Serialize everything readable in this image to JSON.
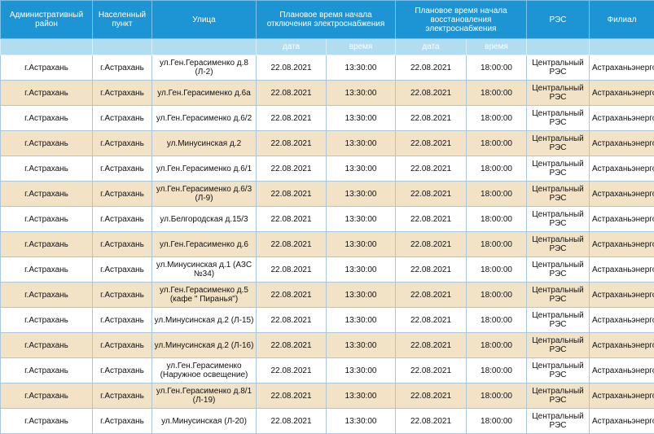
{
  "table": {
    "headers": {
      "district": "Административный район",
      "locality": "Населенный пункт",
      "street": "Улица",
      "off_start": "Плановое время начала отключения электроснабжения",
      "restore_start": "Плановое время начала восстановления электроснабжения",
      "res": "РЭС",
      "branch": "Филиал"
    },
    "subheaders": {
      "off_date": "дата",
      "off_time": "время",
      "restore_date": "дата",
      "restore_time": "время"
    },
    "rows": [
      {
        "district": "г.Астрахань",
        "locality": "г.Астрахань",
        "street": "ул.Ген.Герасименко д.8 (Л-2)",
        "off_date": "22.08.2021",
        "off_time": "13:30:00",
        "restore_date": "22.08.2021",
        "restore_time": "18:00:00",
        "res": "Центральный РЭС",
        "branch": "Астраханьэнерго"
      },
      {
        "district": "г.Астрахань",
        "locality": "г.Астрахань",
        "street": "ул.Ген.Герасименко д.6а",
        "off_date": "22.08.2021",
        "off_time": "13:30:00",
        "restore_date": "22.08.2021",
        "restore_time": "18:00:00",
        "res": "Центральный РЭС",
        "branch": "Астраханьэнерго"
      },
      {
        "district": "г.Астрахань",
        "locality": "г.Астрахань",
        "street": "ул.Ген.Герасименко д.6/2",
        "off_date": "22.08.2021",
        "off_time": "13:30:00",
        "restore_date": "22.08.2021",
        "restore_time": "18:00:00",
        "res": "Центральный РЭС",
        "branch": "Астраханьэнерго"
      },
      {
        "district": "г.Астрахань",
        "locality": "г.Астрахань",
        "street": "ул.Минусинская д.2",
        "off_date": "22.08.2021",
        "off_time": "13:30:00",
        "restore_date": "22.08.2021",
        "restore_time": "18:00:00",
        "res": "Центральный РЭС",
        "branch": "Астраханьэнерго"
      },
      {
        "district": "г.Астрахань",
        "locality": "г.Астрахань",
        "street": "ул.Ген.Герасименко д.6/1",
        "off_date": "22.08.2021",
        "off_time": "13:30:00",
        "restore_date": "22.08.2021",
        "restore_time": "18:00:00",
        "res": "Центральный РЭС",
        "branch": "Астраханьэнерго"
      },
      {
        "district": "г.Астрахань",
        "locality": "г.Астрахань",
        "street": "ул.Ген.Герасименко д.6/3 (Л-9)",
        "off_date": "22.08.2021",
        "off_time": "13:30:00",
        "restore_date": "22.08.2021",
        "restore_time": "18:00:00",
        "res": "Центральный РЭС",
        "branch": "Астраханьэнерго"
      },
      {
        "district": "г.Астрахань",
        "locality": "г.Астрахань",
        "street": "ул.Белгородская д.15/3",
        "off_date": "22.08.2021",
        "off_time": "13:30:00",
        "restore_date": "22.08.2021",
        "restore_time": "18:00:00",
        "res": "Центральный РЭС",
        "branch": "Астраханьэнерго"
      },
      {
        "district": "г.Астрахань",
        "locality": "г.Астрахань",
        "street": "ул.Ген.Герасименко д.6",
        "off_date": "22.08.2021",
        "off_time": "13:30:00",
        "restore_date": "22.08.2021",
        "restore_time": "18:00:00",
        "res": "Центральный РЭС",
        "branch": "Астраханьэнерго"
      },
      {
        "district": "г.Астрахань",
        "locality": "г.Астрахань",
        "street": "ул.Минусинская д.1 (АЗС №34)",
        "off_date": "22.08.2021",
        "off_time": "13:30:00",
        "restore_date": "22.08.2021",
        "restore_time": "18:00:00",
        "res": "Центральный РЭС",
        "branch": "Астраханьэнерго"
      },
      {
        "district": "г.Астрахань",
        "locality": "г.Астрахань",
        "street": "ул.Ген.Герасименко д.5 (кафе \" Пиранья\")",
        "off_date": "22.08.2021",
        "off_time": "13:30:00",
        "restore_date": "22.08.2021",
        "restore_time": "18:00:00",
        "res": "Центральный РЭС",
        "branch": "Астраханьэнерго"
      },
      {
        "district": "г.Астрахань",
        "locality": "г.Астрахань",
        "street": "ул.Минусинская д.2 (Л-15)",
        "off_date": "22.08.2021",
        "off_time": "13:30:00",
        "restore_date": "22.08.2021",
        "restore_time": "18:00:00",
        "res": "Центральный РЭС",
        "branch": "Астраханьэнерго"
      },
      {
        "district": "г.Астрахань",
        "locality": "г.Астрахань",
        "street": "ул.Минусинская д.2 (Л-16)",
        "off_date": "22.08.2021",
        "off_time": "13:30:00",
        "restore_date": "22.08.2021",
        "restore_time": "18:00:00",
        "res": "Центральный РЭС",
        "branch": "Астраханьэнерго"
      },
      {
        "district": "г.Астрахань",
        "locality": "г.Астрахань",
        "street": "ул.Ген.Герасименко (Наружное освещение)",
        "off_date": "22.08.2021",
        "off_time": "13:30:00",
        "restore_date": "22.08.2021",
        "restore_time": "18:00:00",
        "res": "Центральный РЭС",
        "branch": "Астраханьэнерго"
      },
      {
        "district": "г.Астрахань",
        "locality": "г.Астрахань",
        "street": "ул.Ген.Герасименко д.8/1 (Л-19)",
        "off_date": "22.08.2021",
        "off_time": "13:30:00",
        "restore_date": "22.08.2021",
        "restore_time": "18:00:00",
        "res": "Центральный РЭС",
        "branch": "Астраханьэнерго"
      },
      {
        "district": "г.Астрахань",
        "locality": "г.Астрахань",
        "street": "ул.Минусинская (Л-20)",
        "off_date": "22.08.2021",
        "off_time": "13:30:00",
        "restore_date": "22.08.2021",
        "restore_time": "18:00:00",
        "res": "Центральный РЭС",
        "branch": "Астраханьэнерго"
      }
    ]
  }
}
